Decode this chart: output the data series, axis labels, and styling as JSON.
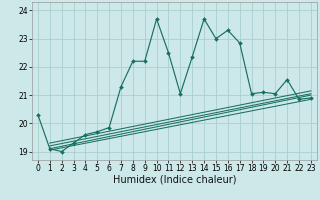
{
  "xlabel": "Humidex (Indice chaleur)",
  "bg_color": "#cde8e8",
  "grid_color": "#aacfcf",
  "line_color": "#1a7060",
  "x_main": [
    0,
    1,
    2,
    3,
    4,
    5,
    6,
    7,
    8,
    9,
    10,
    11,
    12,
    13,
    14,
    15,
    16,
    17,
    18,
    19,
    20,
    21,
    22,
    23
  ],
  "y_main": [
    20.3,
    19.1,
    19.0,
    19.3,
    19.6,
    19.7,
    19.85,
    21.3,
    22.2,
    22.2,
    23.7,
    22.5,
    21.05,
    22.35,
    23.7,
    23.0,
    23.3,
    22.85,
    21.05,
    21.1,
    21.05,
    21.55,
    20.85,
    20.9
  ],
  "ylim": [
    18.7,
    24.3
  ],
  "xlim": [
    -0.5,
    23.5
  ],
  "yticks": [
    19,
    20,
    21,
    22,
    23,
    24
  ],
  "xticks": [
    0,
    1,
    2,
    3,
    4,
    5,
    6,
    7,
    8,
    9,
    10,
    11,
    12,
    13,
    14,
    15,
    16,
    17,
    18,
    19,
    20,
    21,
    22,
    23
  ],
  "reg_lines": [
    {
      "x": [
        1,
        23
      ],
      "y": [
        19.1,
        21.0
      ]
    },
    {
      "x": [
        1,
        23
      ],
      "y": [
        19.05,
        20.85
      ]
    },
    {
      "x": [
        1,
        23
      ],
      "y": [
        19.2,
        21.05
      ]
    },
    {
      "x": [
        1,
        23
      ],
      "y": [
        19.3,
        21.15
      ]
    }
  ],
  "xlabel_fontsize": 7,
  "tick_fontsize": 5.5
}
